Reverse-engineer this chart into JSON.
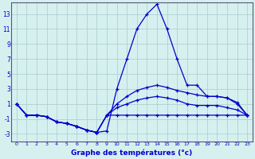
{
  "xlabel": "Graphe des températures (°c)",
  "background_color": "#d6f0f0",
  "grid_color": "#b0d0d0",
  "line_color": "#0000cc",
  "spine_color": "#555577",
  "x_hours": [
    0,
    1,
    2,
    3,
    4,
    5,
    6,
    7,
    8,
    9,
    10,
    11,
    12,
    13,
    14,
    15,
    16,
    17,
    18,
    19,
    20,
    21,
    22,
    23
  ],
  "series1": [
    1.0,
    -0.5,
    -0.5,
    -0.7,
    -1.4,
    -1.6,
    -2.0,
    -2.5,
    -2.8,
    -2.6,
    3.0,
    7.0,
    11.0,
    13.0,
    14.3,
    11.0,
    7.0,
    3.5,
    3.5,
    2.0,
    2.0,
    1.8,
    1.2,
    -0.5
  ],
  "series2": [
    1.0,
    -0.5,
    -0.5,
    -0.7,
    -1.4,
    -1.6,
    -2.0,
    -2.5,
    -2.8,
    -0.5,
    1.0,
    2.0,
    2.8,
    3.2,
    3.5,
    3.2,
    2.8,
    2.5,
    2.2,
    2.0,
    2.0,
    1.8,
    1.0,
    -0.5
  ],
  "series3": [
    1.0,
    -0.5,
    -0.5,
    -0.7,
    -1.4,
    -1.6,
    -2.0,
    -2.5,
    -2.8,
    -0.5,
    0.5,
    1.0,
    1.5,
    1.8,
    2.0,
    1.8,
    1.5,
    1.0,
    0.8,
    0.8,
    0.8,
    0.5,
    0.2,
    -0.5
  ],
  "series4": [
    1.0,
    -0.5,
    -0.5,
    -0.7,
    -1.4,
    -1.6,
    -2.0,
    -2.5,
    -2.8,
    -0.5,
    -0.5,
    -0.5,
    -0.5,
    -0.5,
    -0.5,
    -0.5,
    -0.5,
    -0.5,
    -0.5,
    -0.5,
    -0.5,
    -0.5,
    -0.5,
    -0.5
  ],
  "ylim": [
    -4,
    14.5
  ],
  "yticks": [
    -3,
    -1,
    1,
    3,
    5,
    7,
    9,
    11,
    13
  ],
  "xlim": [
    -0.5,
    23.5
  ]
}
